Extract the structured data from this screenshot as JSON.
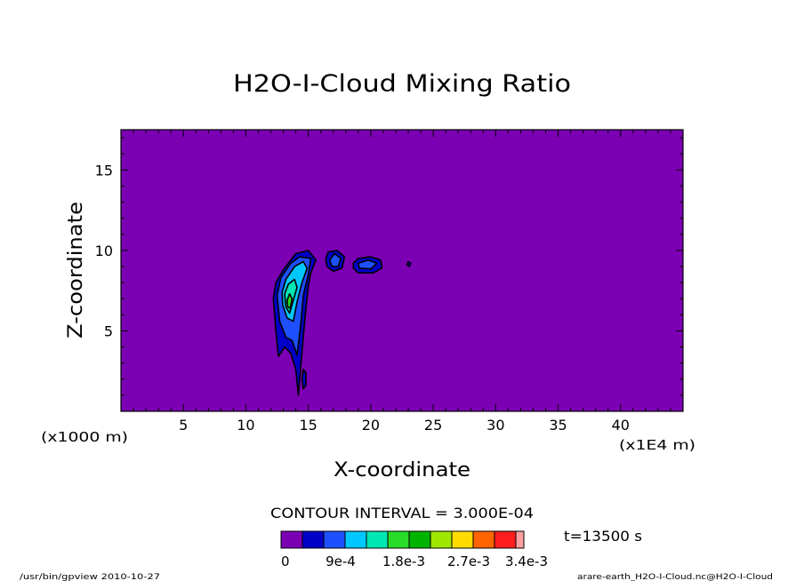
{
  "chart_data": {
    "type": "heatmap",
    "title": "H2O-I-Cloud Mixing Ratio",
    "xlabel": "X-coordinate",
    "ylabel": "Z-coordinate",
    "x_unit": "(x1000 m)",
    "x_unit_right": "(x1E4 m)",
    "xlim": [
      0,
      45
    ],
    "ylim": [
      0,
      17.5
    ],
    "x_ticks": [
      5,
      10,
      15,
      20,
      25,
      30,
      35,
      40
    ],
    "y_ticks": [
      5,
      10,
      15
    ],
    "contour_interval_text": "CONTOUR INTERVAL = 3.000E-04",
    "time_text": "t=13500 s",
    "colorbar": {
      "colors": [
        "#7b00b4",
        "#0000c8",
        "#1e50ff",
        "#00c8ff",
        "#00e6b4",
        "#28dc28",
        "#00b400",
        "#a0e600",
        "#ffdc00",
        "#ff6400",
        "#ff1e1e",
        "#ffa0a0"
      ],
      "labels": [
        "0",
        "9e-4",
        "1.8e-3",
        "2.7e-3",
        "3.4e-3"
      ]
    },
    "background_color": "#7b00b4",
    "cloud_levels": [
      {
        "level": 1,
        "color": "#0000c8",
        "polygons": [
          [
            [
              12.2,
              7.0
            ],
            [
              12.4,
              8.0
            ],
            [
              13.0,
              8.8
            ],
            [
              14.0,
              9.8
            ],
            [
              15.0,
              10.0
            ],
            [
              15.6,
              9.4
            ],
            [
              15.2,
              8.6
            ],
            [
              15.0,
              7.8
            ],
            [
              14.8,
              6.4
            ],
            [
              14.6,
              4.6
            ],
            [
              14.4,
              2.8
            ],
            [
              14.2,
              1.0
            ],
            [
              14.0,
              2.6
            ],
            [
              13.6,
              3.6
            ],
            [
              13.1,
              4.0
            ],
            [
              12.6,
              3.4
            ],
            [
              12.4,
              5.0
            ]
          ],
          [
            [
              16.4,
              9.5
            ],
            [
              16.6,
              9.9
            ],
            [
              17.3,
              10.0
            ],
            [
              17.9,
              9.6
            ],
            [
              17.7,
              8.9
            ],
            [
              17.0,
              8.7
            ],
            [
              16.5,
              9.0
            ]
          ],
          [
            [
              18.6,
              9.2
            ],
            [
              19.0,
              9.5
            ],
            [
              20.0,
              9.6
            ],
            [
              20.8,
              9.4
            ],
            [
              20.9,
              8.9
            ],
            [
              20.2,
              8.6
            ],
            [
              19.0,
              8.6
            ],
            [
              18.6,
              8.9
            ]
          ],
          [
            [
              23.0,
              9.3
            ],
            [
              23.2,
              9.2
            ],
            [
              23.1,
              9.0
            ],
            [
              22.9,
              9.1
            ]
          ],
          [
            [
              14.6,
              2.6
            ],
            [
              14.8,
              2.4
            ],
            [
              14.8,
              1.6
            ],
            [
              14.6,
              1.4
            ],
            [
              14.5,
              2.0
            ]
          ]
        ]
      },
      {
        "level": 2,
        "color": "#1e50ff",
        "polygons": [
          [
            [
              12.5,
              7.2
            ],
            [
              12.8,
              8.3
            ],
            [
              13.6,
              9.2
            ],
            [
              14.3,
              9.6
            ],
            [
              15.2,
              9.5
            ],
            [
              15.0,
              8.5
            ],
            [
              14.6,
              7.2
            ],
            [
              14.4,
              5.4
            ],
            [
              14.1,
              3.5
            ],
            [
              13.7,
              4.4
            ],
            [
              13.2,
              4.6
            ],
            [
              12.7,
              5.6
            ]
          ],
          [
            [
              16.7,
              9.4
            ],
            [
              17.1,
              9.8
            ],
            [
              17.6,
              9.5
            ],
            [
              17.4,
              9.0
            ],
            [
              16.9,
              9.0
            ]
          ],
          [
            [
              19.0,
              9.2
            ],
            [
              19.8,
              9.4
            ],
            [
              20.5,
              9.2
            ],
            [
              20.0,
              8.85
            ],
            [
              19.1,
              8.9
            ]
          ]
        ]
      },
      {
        "level": 3,
        "color": "#00c8ff",
        "polygons": [
          [
            [
              12.9,
              7.4
            ],
            [
              13.2,
              8.2
            ],
            [
              13.9,
              9.0
            ],
            [
              14.6,
              9.3
            ],
            [
              14.9,
              8.9
            ],
            [
              14.5,
              8.0
            ],
            [
              14.1,
              6.8
            ],
            [
              13.8,
              5.6
            ],
            [
              13.3,
              5.8
            ],
            [
              12.95,
              6.6
            ]
          ]
        ]
      },
      {
        "level": 4,
        "color": "#00e6b4",
        "polygons": [
          [
            [
              13.1,
              7.3
            ],
            [
              13.4,
              7.9
            ],
            [
              13.9,
              8.2
            ],
            [
              14.1,
              7.7
            ],
            [
              13.8,
              6.9
            ],
            [
              13.5,
              6.1
            ],
            [
              13.2,
              6.5
            ]
          ]
        ]
      },
      {
        "level": 5,
        "color": "#28dc28",
        "polygons": [
          [
            [
              13.3,
              6.9
            ],
            [
              13.5,
              7.3
            ],
            [
              13.7,
              7.0
            ],
            [
              13.55,
              6.4
            ],
            [
              13.35,
              6.5
            ]
          ]
        ]
      }
    ]
  },
  "footer": {
    "left": "/usr/bin/gpview  2010-10-27",
    "right": "arare-earth_H2O-I-Cloud.nc@H2O-I-Cloud"
  }
}
